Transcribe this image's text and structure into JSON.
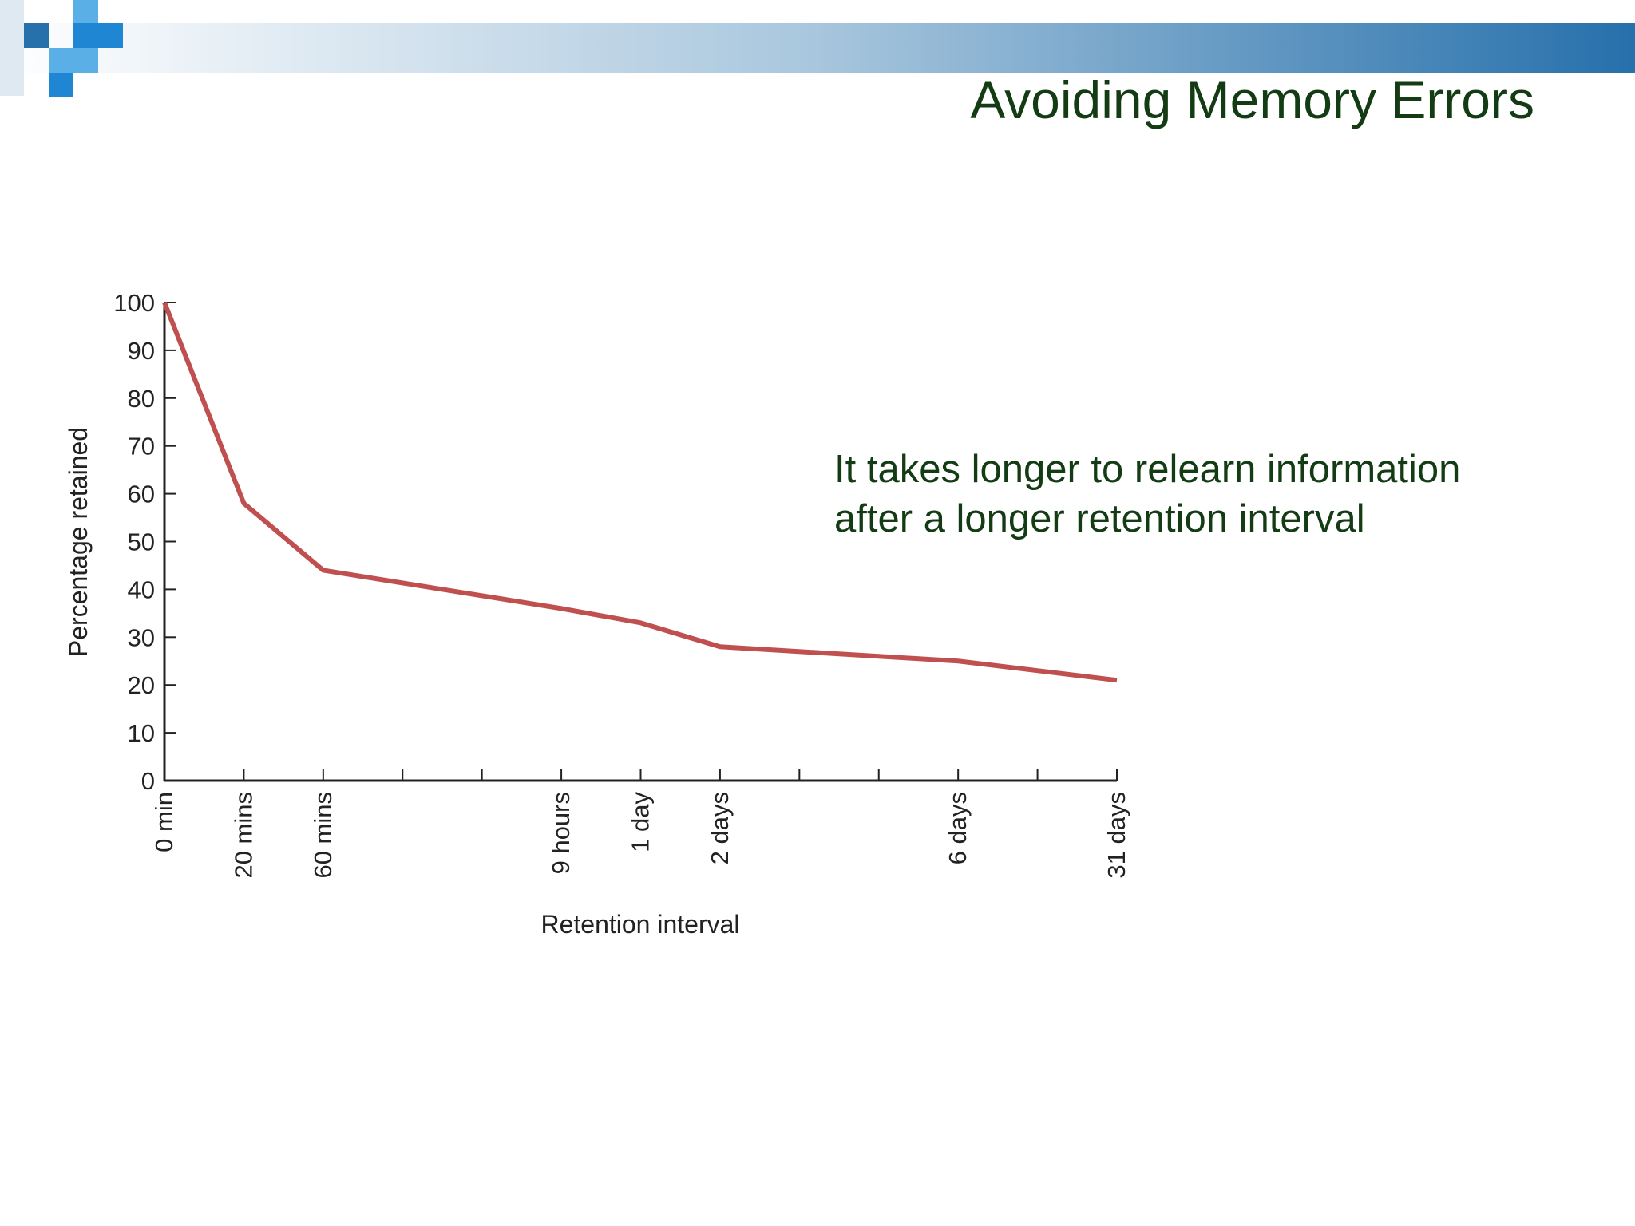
{
  "chart_data": {
    "type": "line",
    "title": "Avoiding Memory Errors",
    "annotation": [
      "It takes longer to relearn information",
      "after a longer retention interval"
    ],
    "xlabel": "Retention interval",
    "ylabel": "Percentage retained",
    "x": [
      0,
      1,
      2,
      5,
      6,
      7,
      10,
      12
    ],
    "values": [
      100,
      58,
      44,
      36,
      33,
      28,
      25,
      21
    ],
    "color": "#c0504f",
    "xlim": [
      0,
      12
    ],
    "xticks": [
      {
        "value": 0,
        "label": "0 min"
      },
      {
        "value": 1,
        "label": "20 mins"
      },
      {
        "value": 2,
        "label": "60 mins"
      },
      {
        "value": 5,
        "label": "9 hours"
      },
      {
        "value": 6,
        "label": "1 day"
      },
      {
        "value": 7,
        "label": "2 days"
      },
      {
        "value": 10,
        "label": "6 days"
      },
      {
        "value": 12,
        "label": "31 days"
      }
    ],
    "xminorticks": [
      3,
      4,
      8,
      9,
      11
    ],
    "ylim": [
      0,
      100
    ],
    "yticks": [
      0,
      10,
      20,
      30,
      40,
      50,
      60,
      70,
      80,
      90,
      100
    ]
  }
}
